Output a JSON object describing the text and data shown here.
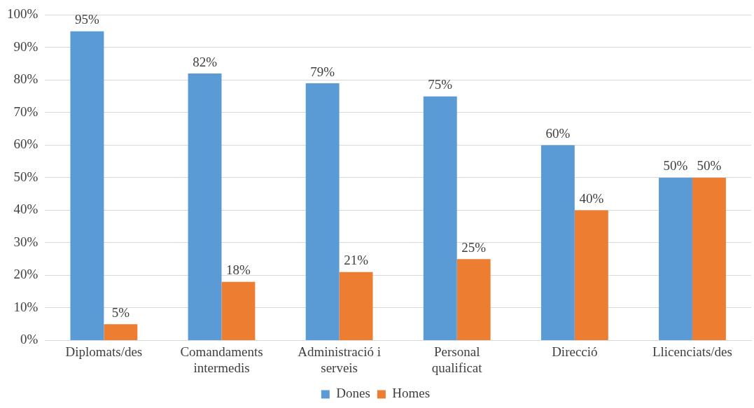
{
  "chart_data": {
    "type": "bar",
    "categories": [
      "Diplomats/des",
      "Comandaments intermedis",
      "Administració i serveis",
      "Personal qualificat",
      "Direcció",
      "Llicenciats/des"
    ],
    "series": [
      {
        "name": "Dones",
        "color": "#5b9bd5",
        "values": [
          95,
          82,
          79,
          75,
          60,
          50
        ],
        "value_labels": [
          "95%",
          "82%",
          "79%",
          "75%",
          "60%",
          "50%"
        ]
      },
      {
        "name": "Homes",
        "color": "#ed7d31",
        "values": [
          5,
          18,
          21,
          25,
          40,
          50
        ],
        "value_labels": [
          "5%",
          "18%",
          "21%",
          "25%",
          "40%",
          "50%"
        ]
      }
    ],
    "ylim": [
      0,
      100
    ],
    "yticks": [
      {
        "value": 0,
        "label": "0%"
      },
      {
        "value": 10,
        "label": "10%"
      },
      {
        "value": 20,
        "label": "20%"
      },
      {
        "value": 30,
        "label": "30%"
      },
      {
        "value": 40,
        "label": "40%"
      },
      {
        "value": 50,
        "label": "50%"
      },
      {
        "value": 60,
        "label": "60%"
      },
      {
        "value": 70,
        "label": "70%"
      },
      {
        "value": 80,
        "label": "80%"
      },
      {
        "value": 90,
        "label": "90%"
      },
      {
        "value": 100,
        "label": "100%"
      }
    ],
    "grid": "y",
    "legend": "bottom"
  }
}
